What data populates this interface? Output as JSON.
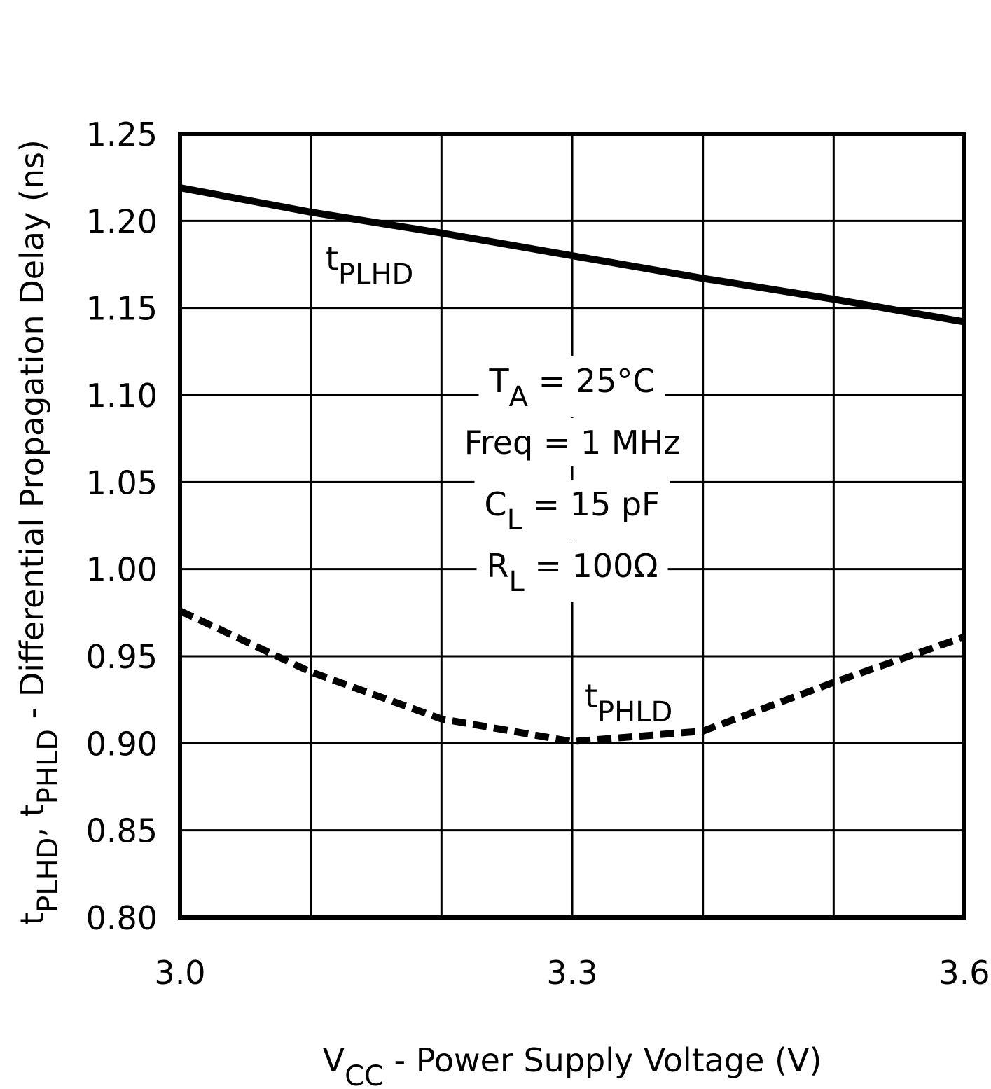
{
  "chart_data": {
    "type": "line",
    "x_label": [
      "V",
      "CC",
      " - Power Supply Voltage (V)"
    ],
    "y_label": [
      "t",
      "PLHD",
      ", t",
      "PHLD",
      " - Differential Propagation Delay (ns)"
    ],
    "x": [
      3.0,
      3.1,
      3.2,
      3.3,
      3.4,
      3.5,
      3.6
    ],
    "series": [
      {
        "name": [
          "t",
          "PLHD"
        ],
        "color": "#000000",
        "dashed": false,
        "values": [
          1.219,
          1.205,
          1.193,
          1.18,
          1.167,
          1.155,
          1.142
        ]
      },
      {
        "name": [
          "t",
          "PHLD"
        ],
        "color": "#000000",
        "dashed": true,
        "values": [
          0.976,
          0.941,
          0.914,
          0.901,
          0.907,
          0.935,
          0.961
        ]
      }
    ],
    "xlim": [
      3.0,
      3.6
    ],
    "xticks": [
      {
        "value": 3,
        "label": "3.0"
      },
      3.3,
      3.6
    ],
    "xgrid": [
      3.1,
      3.2,
      3.3,
      3.4,
      3.5
    ],
    "ylim": [
      0.8,
      1.25
    ],
    "yticks": [
      {
        "value": 0.8,
        "label": "0.80"
      },
      0.85,
      {
        "value": 0.9,
        "label": "0.90"
      },
      0.95,
      {
        "value": 1.0,
        "label": "1.00"
      },
      1.05,
      {
        "value": 1.1,
        "label": "1.10"
      },
      1.15,
      {
        "value": 1.2,
        "label": "1.20"
      },
      1.25
    ],
    "grid": true,
    "annotation": [
      [
        "T",
        "A",
        " = 25°C"
      ],
      [
        "Freq = 1 MHz"
      ],
      [
        "C",
        "L",
        " = 15 pF"
      ],
      [
        "R",
        "L",
        " = 100Ω"
      ]
    ]
  }
}
